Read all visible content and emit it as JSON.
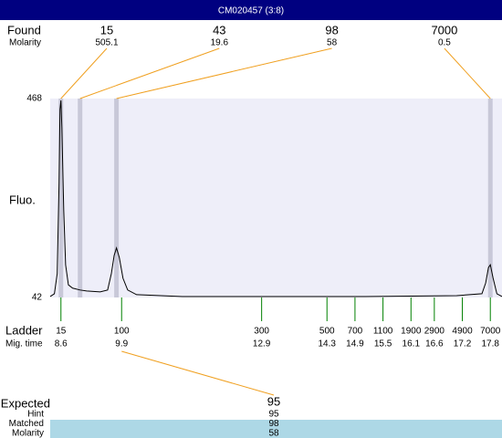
{
  "title": "CM020457 (3:8)",
  "chart_data": {
    "type": "line",
    "ylabel": "Fluo.",
    "xlim": [
      8.37,
      18.05
    ],
    "ylim": [
      42,
      468
    ],
    "yticks": [
      42,
      468
    ],
    "x": [
      8.37,
      8.46,
      8.52,
      8.56,
      8.58,
      8.6,
      8.62,
      8.66,
      8.7,
      8.76,
      8.85,
      9.01,
      9.15,
      9.44,
      9.6,
      9.68,
      9.74,
      9.79,
      9.85,
      9.93,
      10.03,
      10.22,
      11.2,
      13.16,
      15.12,
      17.08,
      17.62,
      17.7,
      17.76,
      17.8,
      17.86,
      17.94,
      18.05
    ],
    "values": [
      44,
      50,
      93,
      288,
      445,
      464,
      405,
      229,
      112,
      69,
      62,
      58,
      56,
      54,
      58,
      93,
      132,
      148,
      128,
      83,
      58,
      48,
      44,
      44,
      44,
      46,
      50,
      73,
      106,
      112,
      83,
      50,
      44
    ],
    "color": "#000000",
    "found": {
      "label": "Found",
      "sublabel": "Molarity",
      "sizes": [
        15,
        43,
        98,
        7000
      ],
      "molarity": [
        505.1,
        19.6,
        58,
        0.5
      ],
      "times": [
        8.6,
        9.01,
        9.79,
        17.8
      ]
    },
    "ladder": {
      "label": "Ladder",
      "sublabel": "Mig. time",
      "sizes": [
        15,
        100,
        300,
        500,
        700,
        1100,
        1900,
        2900,
        4900,
        7000
      ],
      "times": [
        8.6,
        9.9,
        12.9,
        14.3,
        14.9,
        15.5,
        16.1,
        16.6,
        17.2,
        17.8
      ]
    }
  },
  "expected": {
    "label": "Expected",
    "value": 95,
    "rows": [
      [
        "Hint",
        95
      ],
      [
        "Matched",
        98
      ],
      [
        "Molarity",
        58
      ]
    ]
  }
}
